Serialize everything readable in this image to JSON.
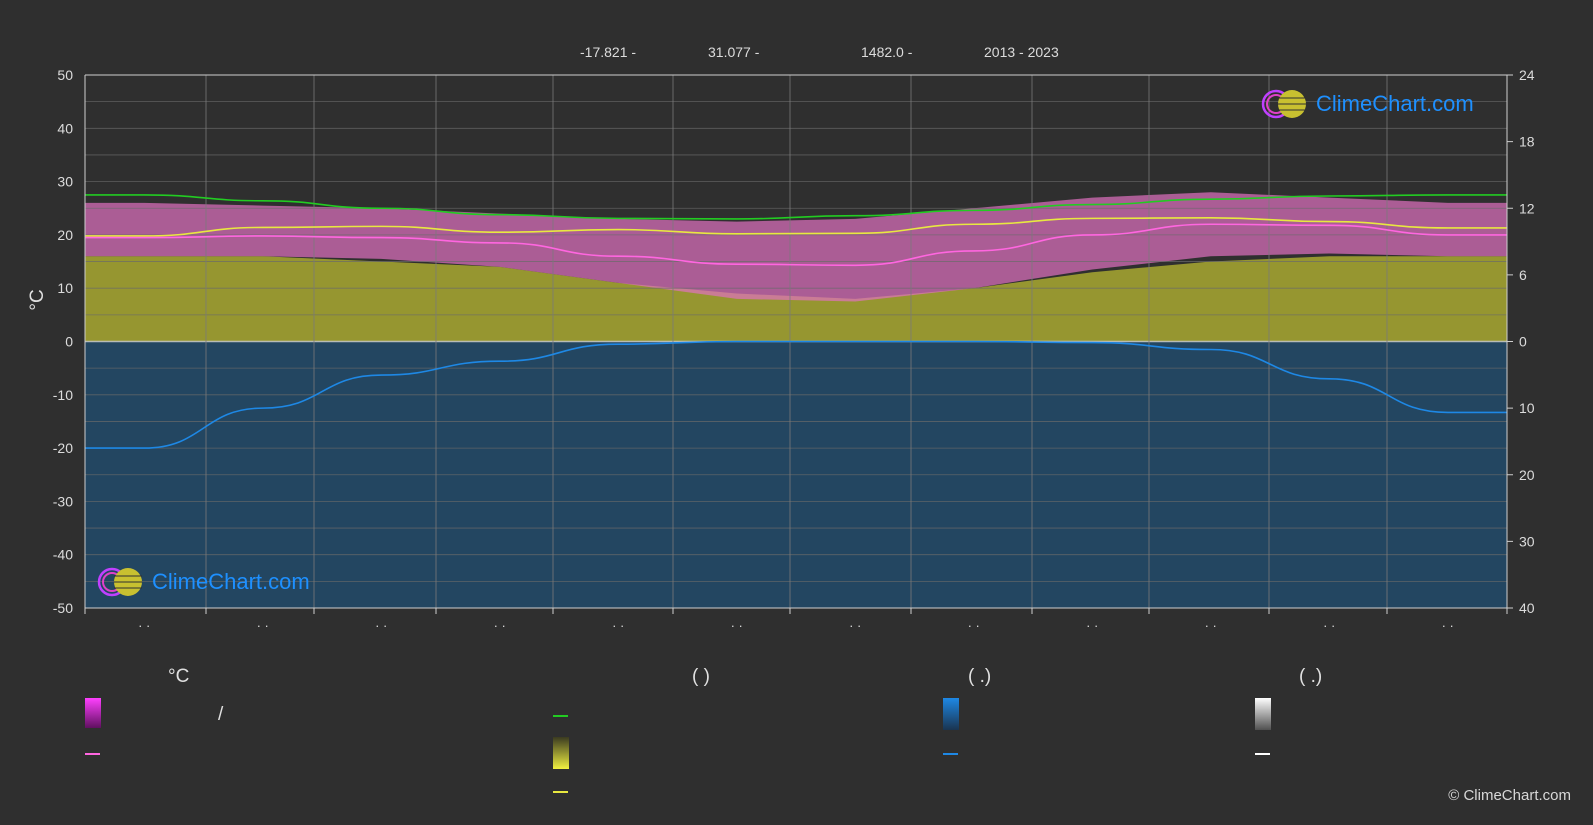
{
  "header": {
    "latitude_label": "-17.821 -",
    "longitude_label": "31.077 -",
    "elevation_label": "1482.0 -",
    "years_label": "2013 - 2023"
  },
  "logo": {
    "text": "ClimeChart.com"
  },
  "copyright": "© ClimeChart.com",
  "legend": {
    "col1_head": "°C",
    "col1_slash": "/",
    "col2_head": "(            )",
    "col3_head": "(    .)",
    "col4_head": "(    .)"
  },
  "colors": {
    "background": "#2f2f2f",
    "daylight_line": "#22cc22",
    "sunshine_line": "#e8e840",
    "temp_line": "#ff66e0",
    "precip_line": "#1e88e5",
    "temp_band": "#e040c8",
    "sun_band": "#a8a830",
    "precip_band": "#1a5a8a"
  },
  "chart_data": {
    "type": "line",
    "y_left": {
      "label": "°C",
      "ticks": [
        50,
        40,
        30,
        20,
        10,
        0,
        -10,
        -20,
        -30,
        -40,
        -50
      ],
      "range": [
        -50,
        50
      ]
    },
    "y_right_top": {
      "ticks": [
        24,
        18,
        12,
        6,
        0
      ],
      "range": [
        0,
        24
      ]
    },
    "y_right_bottom": {
      "ticks": [
        0,
        10,
        20,
        30,
        40
      ],
      "range": [
        0,
        40
      ]
    },
    "x_tick_labels": [
      "· ·",
      "· ·",
      "· ·",
      "· ·",
      "· ·",
      "· ·",
      "· ·",
      "· ·",
      "· ·",
      "· ·",
      "· ·",
      "· ·"
    ],
    "series": [
      {
        "key": "daylight",
        "values": [
          27.5,
          26.4,
          25.0,
          23.8,
          23.1,
          23.0,
          23.6,
          24.6,
          25.7,
          26.7,
          27.3,
          27.5
        ]
      },
      {
        "key": "sunshine",
        "values": [
          19.8,
          21.4,
          21.6,
          20.5,
          21.0,
          20.2,
          20.3,
          22.0,
          23.1,
          23.2,
          22.5,
          21.3
        ]
      },
      {
        "key": "temperature",
        "values": [
          19.5,
          19.8,
          19.5,
          18.5,
          16.0,
          14.5,
          14.3,
          17.0,
          20.0,
          22.0,
          21.8,
          20.0
        ]
      },
      {
        "key": "precipitation",
        "values": [
          -20.0,
          -12.5,
          -6.3,
          -3.7,
          -0.5,
          0.0,
          0.0,
          0.0,
          -0.2,
          -1.5,
          -7.0,
          -13.3
        ]
      }
    ],
    "bands": {
      "temp_max": [
        26,
        25.5,
        25,
        24,
        23,
        22.5,
        23,
        25,
        27,
        28,
        27,
        26
      ],
      "temp_min": [
        16,
        16,
        15.5,
        14,
        11,
        8,
        7.5,
        10,
        13.5,
        16,
        16.5,
        16
      ],
      "sun_hours_top": [
        16,
        16,
        15,
        14,
        11,
        9,
        8,
        10,
        13,
        15,
        16,
        16
      ]
    }
  }
}
